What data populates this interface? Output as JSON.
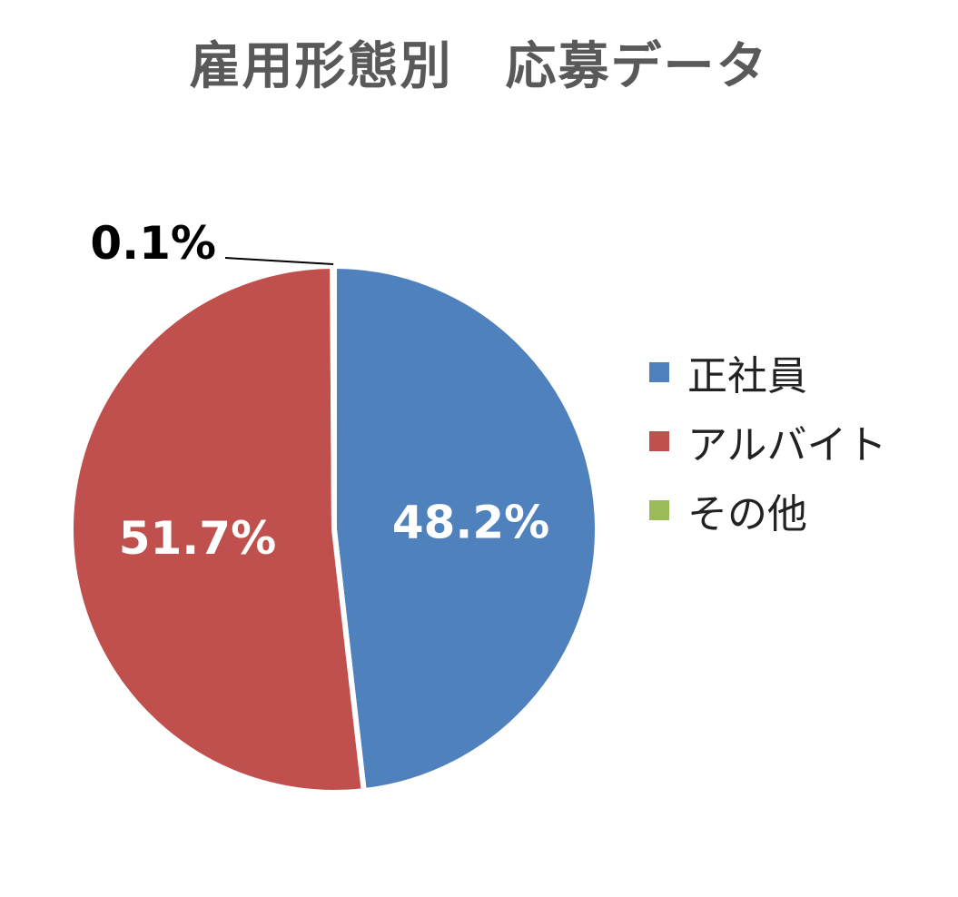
{
  "chart_data": {
    "type": "pie",
    "title": "雇用形態別　応募データ",
    "categories": [
      "正社員",
      "アルバイト",
      "その他"
    ],
    "values": [
      48.2,
      51.7,
      0.1
    ],
    "data_labels": [
      "48.2%",
      "51.7%",
      "0.1%"
    ],
    "colors": [
      "#4F81BD",
      "#C0504D",
      "#9BBB59"
    ],
    "legend_position": "right"
  }
}
